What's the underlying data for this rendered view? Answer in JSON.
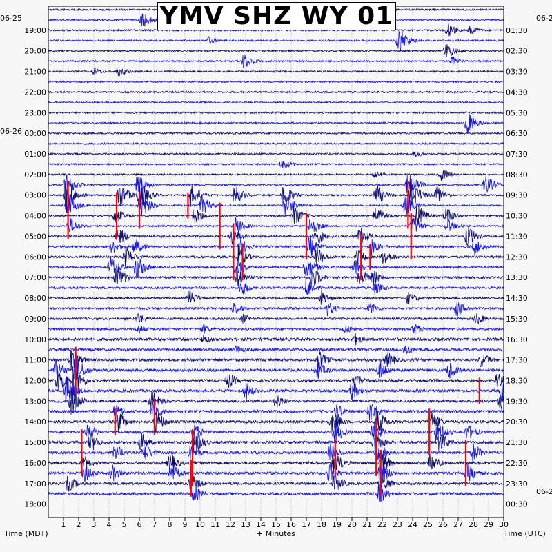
{
  "title": "YMV SHZ WY 01",
  "colors": {
    "trace_dark": "#0a0a5e",
    "trace_blue": "#1515e6",
    "trace_navy": "#10107a",
    "clip": "#ff0000",
    "background": "#f7f7f7"
  },
  "date_labels": {
    "left_top": "06-25",
    "left_mid": "06-26",
    "right_top": "06-2",
    "right_bottom": "06-2"
  },
  "chart_data": {
    "type": "line",
    "title": "YMV SHZ WY 01",
    "xlabel": "+ Minutes",
    "ylabel_left": "Time (MDT)",
    "ylabel_right": "Time (UTC)",
    "xlim": [
      0,
      30
    ],
    "x_ticks": [
      "1",
      "2",
      "3",
      "4",
      "5",
      "6",
      "7",
      "8",
      "9",
      "10",
      "11",
      "12",
      "13",
      "14",
      "15",
      "16",
      "17",
      "18",
      "19",
      "20",
      "21",
      "22",
      "23",
      "24",
      "25",
      "26",
      "27",
      "28",
      "29",
      "30"
    ],
    "lines_per_hour": 2,
    "mdt_hour_labels": [
      "19:00",
      "20:00",
      "21:00",
      "22:00",
      "23:00",
      "00:00",
      "01:00",
      "02:00",
      "03:00",
      "04:00",
      "05:00",
      "06:00",
      "07:00",
      "08:00",
      "09:00",
      "10:00",
      "11:00",
      "12:00",
      "13:00",
      "14:00",
      "15:00",
      "16:00",
      "17:00",
      "18:00"
    ],
    "utc_hour_labels": [
      "01:30",
      "02:30",
      "03:30",
      "04:30",
      "05:30",
      "06:30",
      "07:30",
      "08:30",
      "09:30",
      "10:30",
      "11:30",
      "12:30",
      "13:30",
      "14:30",
      "15:30",
      "16:30",
      "17:30",
      "18:30",
      "19:30",
      "20:30",
      "21:30",
      "22:30",
      "23:30",
      "00:30"
    ],
    "events": [
      {
        "row": 1,
        "minute": 6.2,
        "amp": 14
      },
      {
        "row": 2,
        "minute": 26.3,
        "amp": 12
      },
      {
        "row": 2,
        "minute": 27.8,
        "amp": 8
      },
      {
        "row": 3,
        "minute": 10.6,
        "amp": 7
      },
      {
        "row": 3,
        "minute": 23.1,
        "amp": 22
      },
      {
        "row": 4,
        "minute": 26.2,
        "amp": 14
      },
      {
        "row": 5,
        "minute": 12.9,
        "amp": 14
      },
      {
        "row": 5,
        "minute": 26.6,
        "amp": 8
      },
      {
        "row": 6,
        "minute": 3.0,
        "amp": 7
      },
      {
        "row": 6,
        "minute": 4.6,
        "amp": 9
      },
      {
        "row": 11,
        "minute": 27.6,
        "amp": 18
      },
      {
        "row": 14,
        "minute": 24.2,
        "amp": 6
      },
      {
        "row": 15,
        "minute": 15.4,
        "amp": 10
      },
      {
        "row": 16,
        "minute": 21.5,
        "amp": 7
      },
      {
        "row": 16,
        "minute": 25.9,
        "amp": 10
      },
      {
        "row": 17,
        "minute": 1.2,
        "amp": 22
      },
      {
        "row": 17,
        "minute": 5.9,
        "amp": 18
      },
      {
        "row": 17,
        "minute": 23.7,
        "amp": 20
      },
      {
        "row": 17,
        "minute": 28.8,
        "amp": 16
      },
      {
        "row": 18,
        "minute": 1.2,
        "amp": 26
      },
      {
        "row": 18,
        "minute": 4.7,
        "amp": 20
      },
      {
        "row": 18,
        "minute": 6.0,
        "amp": 24
      },
      {
        "row": 18,
        "minute": 9.4,
        "amp": 20
      },
      {
        "row": 18,
        "minute": 12.3,
        "amp": 16
      },
      {
        "row": 18,
        "minute": 15.5,
        "amp": 20
      },
      {
        "row": 18,
        "minute": 21.6,
        "amp": 18
      },
      {
        "row": 18,
        "minute": 23.9,
        "amp": 26
      },
      {
        "row": 18,
        "minute": 25.6,
        "amp": 14
      },
      {
        "row": 19,
        "minute": 1.3,
        "amp": 20
      },
      {
        "row": 19,
        "minute": 6.1,
        "amp": 22
      },
      {
        "row": 19,
        "minute": 10.1,
        "amp": 16
      },
      {
        "row": 19,
        "minute": 15.6,
        "amp": 20
      },
      {
        "row": 19,
        "minute": 23.5,
        "amp": 18
      },
      {
        "row": 20,
        "minute": 4.4,
        "amp": 14
      },
      {
        "row": 20,
        "minute": 9.6,
        "amp": 14
      },
      {
        "row": 20,
        "minute": 16.2,
        "amp": 16
      },
      {
        "row": 20,
        "minute": 21.6,
        "amp": 16
      },
      {
        "row": 20,
        "minute": 24.3,
        "amp": 18
      },
      {
        "row": 20,
        "minute": 26.2,
        "amp": 14
      },
      {
        "row": 21,
        "minute": 1.4,
        "amp": 14
      },
      {
        "row": 21,
        "minute": 12.3,
        "amp": 16
      },
      {
        "row": 21,
        "minute": 17.3,
        "amp": 16
      },
      {
        "row": 21,
        "minute": 24.0,
        "amp": 16
      },
      {
        "row": 21,
        "minute": 26.3,
        "amp": 12
      },
      {
        "row": 22,
        "minute": 4.6,
        "amp": 16
      },
      {
        "row": 22,
        "minute": 12.1,
        "amp": 14
      },
      {
        "row": 22,
        "minute": 17.6,
        "amp": 16
      },
      {
        "row": 22,
        "minute": 20.5,
        "amp": 16
      },
      {
        "row": 22,
        "minute": 27.6,
        "amp": 18
      },
      {
        "row": 23,
        "minute": 4.2,
        "amp": 12
      },
      {
        "row": 23,
        "minute": 5.7,
        "amp": 14
      },
      {
        "row": 23,
        "minute": 12.6,
        "amp": 16
      },
      {
        "row": 23,
        "minute": 17.2,
        "amp": 18
      },
      {
        "row": 23,
        "minute": 21.3,
        "amp": 14
      },
      {
        "row": 23,
        "minute": 28.1,
        "amp": 14
      },
      {
        "row": 24,
        "minute": 5.1,
        "amp": 16
      },
      {
        "row": 24,
        "minute": 12.5,
        "amp": 18
      },
      {
        "row": 24,
        "minute": 17.7,
        "amp": 16
      },
      {
        "row": 24,
        "minute": 20.4,
        "amp": 16
      },
      {
        "row": 24,
        "minute": 22.1,
        "amp": 14
      },
      {
        "row": 25,
        "minute": 4.1,
        "amp": 20
      },
      {
        "row": 25,
        "minute": 5.8,
        "amp": 20
      },
      {
        "row": 25,
        "minute": 12.4,
        "amp": 18
      },
      {
        "row": 25,
        "minute": 17.0,
        "amp": 22
      },
      {
        "row": 25,
        "minute": 20.2,
        "amp": 14
      },
      {
        "row": 26,
        "minute": 4.5,
        "amp": 20
      },
      {
        "row": 26,
        "minute": 12.5,
        "amp": 16
      },
      {
        "row": 26,
        "minute": 17.4,
        "amp": 18
      },
      {
        "row": 26,
        "minute": 20.5,
        "amp": 16
      },
      {
        "row": 26,
        "minute": 21.4,
        "amp": 14
      },
      {
        "row": 27,
        "minute": 12.7,
        "amp": 14
      },
      {
        "row": 27,
        "minute": 17.0,
        "amp": 16
      },
      {
        "row": 27,
        "minute": 21.5,
        "amp": 12
      },
      {
        "row": 28,
        "minute": 9.3,
        "amp": 12
      },
      {
        "row": 28,
        "minute": 18.0,
        "amp": 12
      },
      {
        "row": 28,
        "minute": 23.7,
        "amp": 10
      },
      {
        "row": 29,
        "minute": 12.2,
        "amp": 10
      },
      {
        "row": 29,
        "minute": 18.4,
        "amp": 12
      },
      {
        "row": 29,
        "minute": 21.2,
        "amp": 10
      },
      {
        "row": 29,
        "minute": 26.9,
        "amp": 14
      },
      {
        "row": 30,
        "minute": 5.9,
        "amp": 10
      },
      {
        "row": 30,
        "minute": 12.8,
        "amp": 8
      },
      {
        "row": 30,
        "minute": 28.2,
        "amp": 10
      },
      {
        "row": 31,
        "minute": 5.9,
        "amp": 8
      },
      {
        "row": 31,
        "minute": 10.2,
        "amp": 8
      },
      {
        "row": 31,
        "minute": 19.5,
        "amp": 8
      },
      {
        "row": 31,
        "minute": 24.1,
        "amp": 10
      },
      {
        "row": 32,
        "minute": 10.2,
        "amp": 8
      },
      {
        "row": 32,
        "minute": 20.2,
        "amp": 10
      },
      {
        "row": 33,
        "minute": 12.4,
        "amp": 8
      },
      {
        "row": 33,
        "minute": 23.5,
        "amp": 10
      },
      {
        "row": 34,
        "minute": 1.5,
        "amp": 20
      },
      {
        "row": 34,
        "minute": 17.8,
        "amp": 16
      },
      {
        "row": 34,
        "minute": 22.3,
        "amp": 14
      },
      {
        "row": 34,
        "minute": 28.5,
        "amp": 14
      },
      {
        "row": 35,
        "minute": 0.5,
        "amp": 18
      },
      {
        "row": 35,
        "minute": 1.8,
        "amp": 24
      },
      {
        "row": 35,
        "minute": 17.7,
        "amp": 16
      },
      {
        "row": 35,
        "minute": 21.8,
        "amp": 18
      },
      {
        "row": 35,
        "minute": 26.4,
        "amp": 14
      },
      {
        "row": 36,
        "minute": 0.6,
        "amp": 22
      },
      {
        "row": 36,
        "minute": 1.7,
        "amp": 24
      },
      {
        "row": 36,
        "minute": 11.8,
        "amp": 14
      },
      {
        "row": 36,
        "minute": 20.2,
        "amp": 14
      },
      {
        "row": 36,
        "minute": 29.6,
        "amp": 14
      },
      {
        "row": 37,
        "minute": 1.2,
        "amp": 24
      },
      {
        "row": 37,
        "minute": 13.0,
        "amp": 14
      },
      {
        "row": 37,
        "minute": 20.0,
        "amp": 16
      },
      {
        "row": 37,
        "minute": 29.9,
        "amp": 20
      },
      {
        "row": 38,
        "minute": 1.5,
        "amp": 22
      },
      {
        "row": 38,
        "minute": 6.8,
        "amp": 18
      },
      {
        "row": 38,
        "minute": 15.0,
        "amp": 12
      },
      {
        "row": 38,
        "minute": 29.8,
        "amp": 16
      },
      {
        "row": 39,
        "minute": 4.4,
        "amp": 14
      },
      {
        "row": 39,
        "minute": 6.9,
        "amp": 16
      },
      {
        "row": 39,
        "minute": 19.0,
        "amp": 14
      },
      {
        "row": 39,
        "minute": 21.2,
        "amp": 18
      },
      {
        "row": 40,
        "minute": 4.6,
        "amp": 16
      },
      {
        "row": 40,
        "minute": 7.1,
        "amp": 18
      },
      {
        "row": 40,
        "minute": 18.7,
        "amp": 18
      },
      {
        "row": 40,
        "minute": 21.7,
        "amp": 18
      },
      {
        "row": 40,
        "minute": 25.2,
        "amp": 18
      },
      {
        "row": 41,
        "minute": 2.6,
        "amp": 14
      },
      {
        "row": 41,
        "minute": 9.6,
        "amp": 16
      },
      {
        "row": 41,
        "minute": 18.9,
        "amp": 20
      },
      {
        "row": 41,
        "minute": 21.4,
        "amp": 18
      },
      {
        "row": 41,
        "minute": 25.6,
        "amp": 20
      },
      {
        "row": 41,
        "minute": 27.6,
        "amp": 14
      },
      {
        "row": 42,
        "minute": 2.8,
        "amp": 16
      },
      {
        "row": 42,
        "minute": 6.1,
        "amp": 16
      },
      {
        "row": 42,
        "minute": 9.7,
        "amp": 18
      },
      {
        "row": 42,
        "minute": 21.5,
        "amp": 20
      },
      {
        "row": 42,
        "minute": 25.8,
        "amp": 18
      },
      {
        "row": 43,
        "minute": 4.4,
        "amp": 14
      },
      {
        "row": 43,
        "minute": 6.3,
        "amp": 16
      },
      {
        "row": 43,
        "minute": 9.4,
        "amp": 16
      },
      {
        "row": 43,
        "minute": 18.6,
        "amp": 16
      },
      {
        "row": 43,
        "minute": 21.7,
        "amp": 18
      },
      {
        "row": 43,
        "minute": 28.0,
        "amp": 16
      },
      {
        "row": 44,
        "minute": 2.3,
        "amp": 14
      },
      {
        "row": 44,
        "minute": 8.0,
        "amp": 16
      },
      {
        "row": 44,
        "minute": 18.8,
        "amp": 18
      },
      {
        "row": 44,
        "minute": 22.0,
        "amp": 18
      },
      {
        "row": 44,
        "minute": 25.2,
        "amp": 16
      },
      {
        "row": 45,
        "minute": 2.4,
        "amp": 16
      },
      {
        "row": 45,
        "minute": 4.2,
        "amp": 14
      },
      {
        "row": 45,
        "minute": 8.1,
        "amp": 16
      },
      {
        "row": 45,
        "minute": 18.5,
        "amp": 16
      },
      {
        "row": 45,
        "minute": 21.9,
        "amp": 20
      },
      {
        "row": 45,
        "minute": 27.6,
        "amp": 18
      },
      {
        "row": 46,
        "minute": 1.3,
        "amp": 14
      },
      {
        "row": 46,
        "minute": 9.4,
        "amp": 16
      },
      {
        "row": 46,
        "minute": 18.9,
        "amp": 16
      },
      {
        "row": 46,
        "minute": 21.9,
        "amp": 18
      },
      {
        "row": 47,
        "minute": 9.6,
        "amp": 14
      },
      {
        "row": 47,
        "minute": 21.8,
        "amp": 16
      }
    ],
    "clipped_events": [
      {
        "row": 17,
        "minute": 1.3,
        "span": [
          17,
          22
        ]
      },
      {
        "row": 17,
        "minute": 23.7,
        "span": [
          17,
          21
        ]
      },
      {
        "row": 18,
        "minute": 4.5,
        "span": [
          18,
          22
        ]
      },
      {
        "row": 18,
        "minute": 6.0,
        "span": [
          18,
          21
        ]
      },
      {
        "row": 18,
        "minute": 9.2,
        "span": [
          18,
          20
        ]
      },
      {
        "row": 19,
        "minute": 11.3,
        "span": [
          19,
          23
        ]
      },
      {
        "row": 20,
        "minute": 17.0,
        "span": [
          20,
          24
        ]
      },
      {
        "row": 20,
        "minute": 23.9,
        "span": [
          20,
          24
        ]
      },
      {
        "row": 21,
        "minute": 12.2,
        "span": [
          21,
          26
        ]
      },
      {
        "row": 22,
        "minute": 20.6,
        "span": [
          22,
          26
        ]
      },
      {
        "row": 23,
        "minute": 12.8,
        "span": [
          23,
          26
        ]
      },
      {
        "row": 23,
        "minute": 21.2,
        "span": [
          23,
          25
        ]
      },
      {
        "row": 33,
        "minute": 1.8,
        "span": [
          33,
          37
        ]
      },
      {
        "row": 36,
        "minute": 28.4,
        "span": [
          36,
          38
        ]
      },
      {
        "row": 38,
        "minute": 7.0,
        "span": [
          38,
          41
        ]
      },
      {
        "row": 39,
        "minute": 4.4,
        "span": [
          39,
          41
        ]
      },
      {
        "row": 39,
        "minute": 25.1,
        "span": [
          39,
          43
        ]
      },
      {
        "row": 40,
        "minute": 21.6,
        "span": [
          40,
          45
        ]
      },
      {
        "row": 41,
        "minute": 2.2,
        "span": [
          41,
          45
        ]
      },
      {
        "row": 41,
        "minute": 9.5,
        "span": [
          41,
          46
        ]
      },
      {
        "row": 42,
        "minute": 18.9,
        "span": [
          42,
          45
        ]
      },
      {
        "row": 42,
        "minute": 27.5,
        "span": [
          42,
          46
        ]
      },
      {
        "row": 43,
        "minute": 21.9,
        "span": [
          43,
          47
        ]
      },
      {
        "row": 44,
        "minute": 9.4,
        "span": [
          44,
          47
        ]
      }
    ]
  }
}
